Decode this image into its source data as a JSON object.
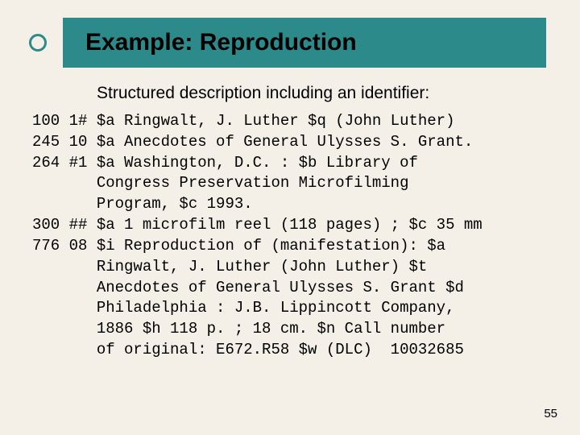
{
  "slide": {
    "title": "Example:  Reproduction",
    "subtitle": "Structured description including an identifier:",
    "page_number": "55",
    "background_color": "#f4f0e8",
    "title_bar_color": "#2d8a8a",
    "bullet_ring_color": "#2d8a8a",
    "title_fontsize": 30,
    "subtitle_fontsize": 21,
    "marc_fontsize": 19,
    "marc_font": "Courier New"
  },
  "marc": {
    "l1": "100 1# $a Ringwalt, J. Luther $q (John Luther)",
    "l2": "245 10 $a Anecdotes of General Ulysses S. Grant.",
    "l3": "264 #1 $a Washington, D.C. : $b Library of",
    "l4": "       Congress Preservation Microfilming",
    "l5": "       Program, $c 1993.",
    "l6": "300 ## $a 1 microfilm reel (118 pages) ; $c 35 mm",
    "l7": "776 08 $i Reproduction of (manifestation): $a",
    "l8": "       Ringwalt, J. Luther (John Luther) $t",
    "l9": "       Anecdotes of General Ulysses S. Grant $d",
    "l10": "       Philadelphia : J.B. Lippincott Company,",
    "l11": "       1886 $h 118 p. ; 18 cm. $n Call number",
    "l12": "       of original: E672.R58 $w (DLC)  10032685"
  }
}
